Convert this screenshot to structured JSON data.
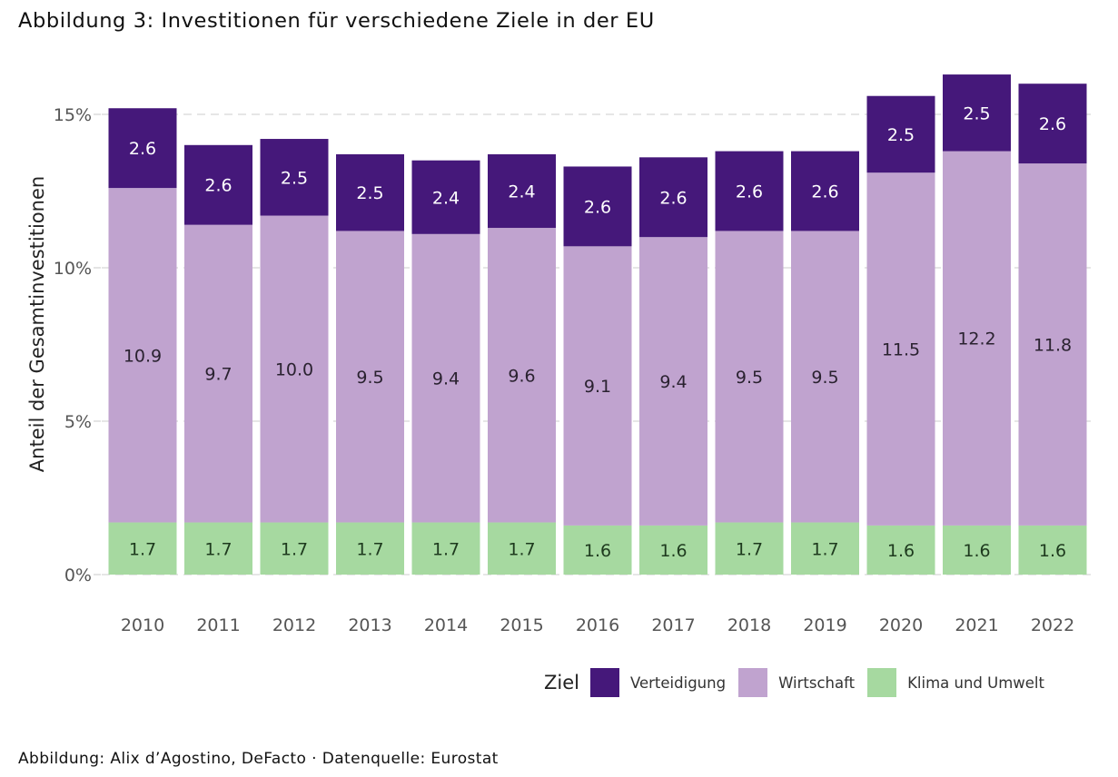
{
  "title": "Abbildung 3: Investitionen für verschiedene Ziele in der EU",
  "caption": "Abbildung: Alix d’Agostino, DeFacto · Datenquelle: Eurostat",
  "legend": {
    "title": "Ziel",
    "items": [
      {
        "label": "Verteidigung",
        "color": "#45187a"
      },
      {
        "label": "Wirtschaft",
        "color": "#c0a3cf"
      },
      {
        "label": "Klima und Umwelt",
        "color": "#a6d9a0"
      }
    ]
  },
  "chart_data": {
    "type": "bar",
    "stacked": true,
    "title": "Abbildung 3: Investitionen für verschiedene Ziele in der EU",
    "xlabel": "",
    "ylabel": "Anteil der Gesamtinvestitionen",
    "ylim": [
      0,
      16.5
    ],
    "yticks": [
      0,
      5,
      10,
      15
    ],
    "ytick_labels": [
      "0%",
      "5%",
      "10%",
      "15%"
    ],
    "grid": "horizontal dashed",
    "legend_position": "bottom-right",
    "categories": [
      "2010",
      "2011",
      "2012",
      "2013",
      "2014",
      "2015",
      "2016",
      "2017",
      "2018",
      "2019",
      "2020",
      "2021",
      "2022"
    ],
    "series": [
      {
        "name": "Klima und Umwelt",
        "color": "#a6d9a0",
        "label_color": "#1e3a1e",
        "values": [
          1.7,
          1.7,
          1.7,
          1.7,
          1.7,
          1.7,
          1.6,
          1.6,
          1.7,
          1.7,
          1.6,
          1.6,
          1.6
        ]
      },
      {
        "name": "Wirtschaft",
        "color": "#c0a3cf",
        "label_color": "#2a2230",
        "values": [
          10.9,
          9.7,
          10.0,
          9.5,
          9.4,
          9.6,
          9.1,
          9.4,
          9.5,
          9.5,
          11.5,
          12.2,
          11.8
        ]
      },
      {
        "name": "Verteidigung",
        "color": "#45187a",
        "label_color": "#ffffff",
        "values": [
          2.6,
          2.6,
          2.5,
          2.5,
          2.4,
          2.4,
          2.6,
          2.6,
          2.6,
          2.6,
          2.5,
          2.5,
          2.6
        ]
      }
    ]
  }
}
